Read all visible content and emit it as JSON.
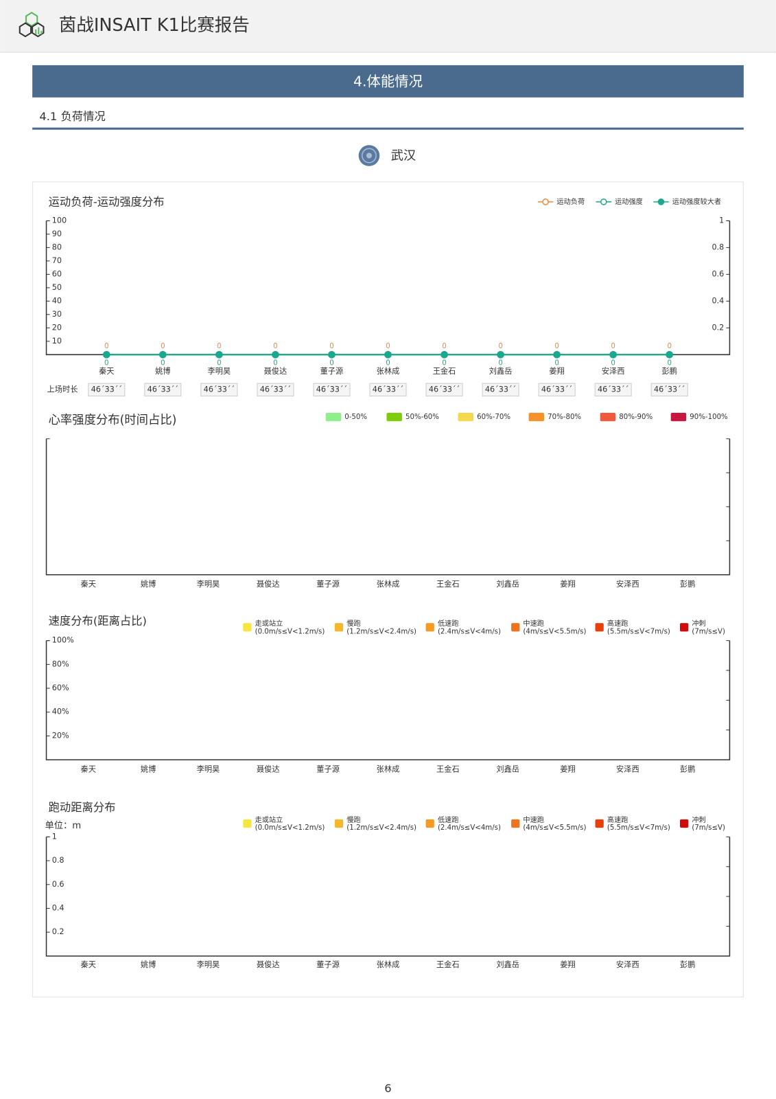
{
  "header": {
    "title": "茵战INSAIT K1比赛报告"
  },
  "section": {
    "title": "4.体能情况",
    "subsection": "4.1 负荷情况"
  },
  "team": {
    "name": "武汉"
  },
  "page_number": 6,
  "chart_data": [
    {
      "type": "line",
      "title": "运动负荷-运动强度分布",
      "categories": [
        "秦天",
        "姚博",
        "李明昊",
        "聂俊达",
        "董子源",
        "张林成",
        "王金石",
        "刘鑫岳",
        "姜翔",
        "安泽西",
        "彭鹏"
      ],
      "series": [
        {
          "name": "运动负荷",
          "color": "#f0883a",
          "marker": "hollow",
          "data_labels": "above",
          "values": [
            0,
            0,
            0,
            0,
            0,
            0,
            0,
            0,
            0,
            0,
            0
          ]
        },
        {
          "name": "运动强度",
          "color": "#1aa88f",
          "marker": "hollow",
          "data_labels": "below",
          "axis": "y2",
          "values": [
            0,
            0,
            0,
            0,
            0,
            0,
            0,
            0,
            0,
            0,
            0
          ]
        },
        {
          "name": "运动强度较大者",
          "color": "#1aa88f",
          "marker": "filled",
          "axis": "y2",
          "values": [
            0,
            0,
            0,
            0,
            0,
            0,
            0,
            0,
            0,
            0,
            0
          ]
        }
      ],
      "ylim": [
        0,
        100
      ],
      "yticks": [
        10,
        20,
        30,
        40,
        50,
        60,
        70,
        80,
        90,
        100
      ],
      "y2lim": [
        0,
        1
      ],
      "y2ticks": [
        0.2,
        0.4,
        0.6,
        0.8,
        1
      ],
      "duration_label": "上场时长",
      "durations": [
        "46´33´´",
        "46´33´´",
        "46´33´´",
        "46´33´´",
        "46´33´´",
        "46´33´´",
        "46´33´´",
        "46´33´´",
        "46´33´´",
        "46´33´´",
        "46´33´´"
      ]
    },
    {
      "type": "bar",
      "stacked": true,
      "title": "心率强度分布(时间占比)",
      "categories": [
        "秦天",
        "姚博",
        "李明昊",
        "聂俊达",
        "董子源",
        "张林成",
        "王金石",
        "刘鑫岳",
        "姜翔",
        "安泽西",
        "彭鹏"
      ],
      "series": [
        {
          "name": "0-50%",
          "color": "#8ef08a",
          "values": [
            0,
            0,
            0,
            0,
            0,
            0,
            0,
            0,
            0,
            0,
            0
          ]
        },
        {
          "name": "50%-60%",
          "color": "#7fcc0c",
          "values": [
            0,
            0,
            0,
            0,
            0,
            0,
            0,
            0,
            0,
            0,
            0
          ]
        },
        {
          "name": "60%-70%",
          "color": "#f5d84e",
          "values": [
            0,
            0,
            0,
            0,
            0,
            0,
            0,
            0,
            0,
            0,
            0
          ]
        },
        {
          "name": "70%-80%",
          "color": "#f5922b",
          "values": [
            0,
            0,
            0,
            0,
            0,
            0,
            0,
            0,
            0,
            0,
            0
          ]
        },
        {
          "name": "80%-90%",
          "color": "#f05a3c",
          "values": [
            0,
            0,
            0,
            0,
            0,
            0,
            0,
            0,
            0,
            0,
            0
          ]
        },
        {
          "name": "90%-100%",
          "color": "#c8163f",
          "values": [
            0,
            0,
            0,
            0,
            0,
            0,
            0,
            0,
            0,
            0,
            0
          ]
        }
      ],
      "ylim": [
        0,
        100
      ]
    },
    {
      "type": "bar",
      "stacked": true,
      "title": "速度分布(距离占比)",
      "categories": [
        "秦天",
        "姚博",
        "李明昊",
        "聂俊达",
        "董子源",
        "张林成",
        "王金石",
        "刘鑫岳",
        "姜翔",
        "安泽西",
        "彭鹏"
      ],
      "series": [
        {
          "name": "走或站立",
          "range": "(0.0m/s≤V<1.2m/s)",
          "color": "#f5e642",
          "values": [
            0,
            0,
            0,
            0,
            0,
            0,
            0,
            0,
            0,
            0,
            0
          ]
        },
        {
          "name": "慢跑",
          "range": "(1.2m/s≤V<2.4m/s)",
          "color": "#f5b82a",
          "values": [
            0,
            0,
            0,
            0,
            0,
            0,
            0,
            0,
            0,
            0,
            0
          ]
        },
        {
          "name": "低速跑",
          "range": "(2.4m/s≤V<4m/s)",
          "color": "#f59a23",
          "values": [
            0,
            0,
            0,
            0,
            0,
            0,
            0,
            0,
            0,
            0,
            0
          ]
        },
        {
          "name": "中速跑",
          "range": "(4m/s≤V<5.5m/s)",
          "color": "#f07420",
          "values": [
            0,
            0,
            0,
            0,
            0,
            0,
            0,
            0,
            0,
            0,
            0
          ]
        },
        {
          "name": "高速跑",
          "range": "(5.5m/s≤V<7m/s)",
          "color": "#e8400c",
          "values": [
            0,
            0,
            0,
            0,
            0,
            0,
            0,
            0,
            0,
            0,
            0
          ]
        },
        {
          "name": "冲刺",
          "range": "(7m/s≤V)",
          "color": "#d00b0b",
          "values": [
            0,
            0,
            0,
            0,
            0,
            0,
            0,
            0,
            0,
            0,
            0
          ]
        }
      ],
      "ylim": [
        0,
        100
      ],
      "yticks": [
        {
          "value": 20,
          "label": "20%"
        },
        {
          "value": 40,
          "label": "40%"
        },
        {
          "value": 60,
          "label": "60%"
        },
        {
          "value": 80,
          "label": "80%"
        },
        {
          "value": 100,
          "label": "100%"
        }
      ]
    },
    {
      "type": "bar",
      "stacked": true,
      "title": "跑动距离分布",
      "unit": "单位：m",
      "categories": [
        "秦天",
        "姚博",
        "李明昊",
        "聂俊达",
        "董子源",
        "张林成",
        "王金石",
        "刘鑫岳",
        "姜翔",
        "安泽西",
        "彭鹏"
      ],
      "series": [
        {
          "name": "走或站立",
          "range": "(0.0m/s≤V<1.2m/s)",
          "color": "#f5e642",
          "values": [
            0,
            0,
            0,
            0,
            0,
            0,
            0,
            0,
            0,
            0,
            0
          ]
        },
        {
          "name": "慢跑",
          "range": "(1.2m/s≤V<2.4m/s)",
          "color": "#f5b82a",
          "values": [
            0,
            0,
            0,
            0,
            0,
            0,
            0,
            0,
            0,
            0,
            0
          ]
        },
        {
          "name": "低速跑",
          "range": "(2.4m/s≤V<4m/s)",
          "color": "#f59a23",
          "values": [
            0,
            0,
            0,
            0,
            0,
            0,
            0,
            0,
            0,
            0,
            0
          ]
        },
        {
          "name": "中速跑",
          "range": "(4m/s≤V<5.5m/s)",
          "color": "#f07420",
          "values": [
            0,
            0,
            0,
            0,
            0,
            0,
            0,
            0,
            0,
            0,
            0
          ]
        },
        {
          "name": "高速跑",
          "range": "(5.5m/s≤V<7m/s)",
          "color": "#e8400c",
          "values": [
            0,
            0,
            0,
            0,
            0,
            0,
            0,
            0,
            0,
            0,
            0
          ]
        },
        {
          "name": "冲刺",
          "range": "(7m/s≤V)",
          "color": "#d00b0b",
          "values": [
            0,
            0,
            0,
            0,
            0,
            0,
            0,
            0,
            0,
            0,
            0
          ]
        }
      ],
      "ylim": [
        0,
        1
      ],
      "yticks": [
        0.2,
        0.4,
        0.6,
        0.8,
        1
      ]
    }
  ]
}
